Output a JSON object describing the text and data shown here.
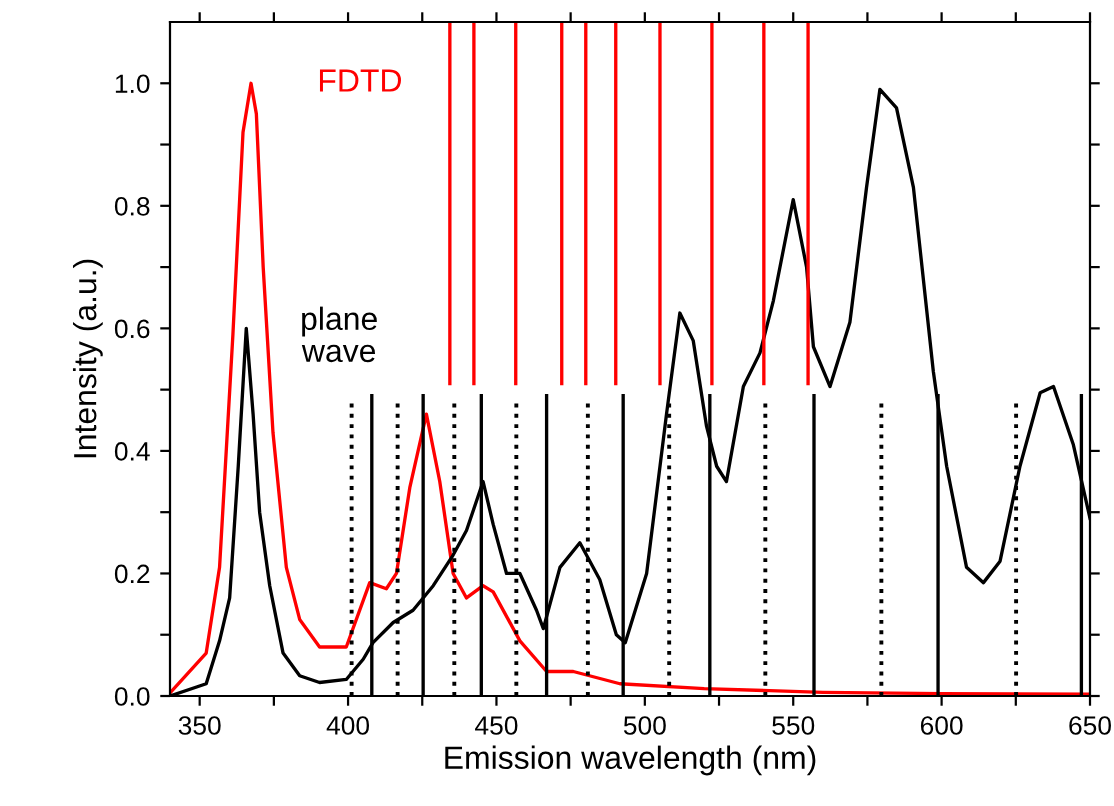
{
  "chart_data": {
    "type": "line",
    "xlabel": "Emission wavelength (nm)",
    "ylabel": "Intensity (a.u.)",
    "xlim": [
      340,
      650
    ],
    "ylim": [
      0,
      1.1
    ],
    "xticks": [
      350,
      {
        "value": 375,
        "label": null
      },
      400,
      {
        "value": 425,
        "label": null
      },
      450,
      {
        "value": 475,
        "label": null
      },
      500,
      {
        "value": 525,
        "label": null
      },
      550,
      {
        "value": 575,
        "label": null
      },
      600,
      {
        "value": 625,
        "label": null
      },
      650
    ],
    "yticks": [
      {
        "value": 0,
        "label": "0.0"
      },
      {
        "value": 0.1,
        "label": null
      },
      0.2,
      {
        "value": 0.3,
        "label": null
      },
      0.4,
      {
        "value": 0.5,
        "label": null
      },
      0.6,
      {
        "value": 0.7,
        "label": null
      },
      0.8,
      {
        "value": 0.9,
        "label": null
      },
      {
        "value": 1.0,
        "label": "1.0"
      }
    ],
    "grid": false,
    "legend": false,
    "annotations": [
      "FDTD",
      "plane\nwave"
    ],
    "series": [
      {
        "color": "#ff0000",
        "line_style": "solid",
        "x": [
          340,
          352.2,
          356.7,
          361.2,
          364.6,
          367.3,
          369.1,
          371.4,
          374.7,
          379.2,
          383.7,
          390.4,
          399.4,
          407.3,
          412.9,
          416.3,
          420.8,
          426.4,
          430.9,
          435.4,
          439.9,
          445.5,
          448.9,
          457.9,
          466.9,
          475.9,
          491.6,
          520,
          560,
          600,
          650
        ],
        "values": [
          0.005,
          0.07,
          0.21,
          0.59,
          0.92,
          1.0,
          0.95,
          0.7,
          0.43,
          0.21,
          0.125,
          0.08,
          0.08,
          0.185,
          0.175,
          0.2,
          0.34,
          0.46,
          0.35,
          0.2,
          0.16,
          0.18,
          0.17,
          0.09,
          0.04,
          0.04,
          0.02,
          0.012,
          0.006,
          0.004,
          0.003
        ]
      },
      {
        "color": "#000000",
        "line_style": "solid",
        "x": [
          340,
          352.2,
          356.7,
          360.1,
          363.0,
          365.7,
          368.0,
          370.2,
          373.6,
          378.1,
          383.7,
          390.4,
          399.4,
          405.1,
          408.4,
          415.2,
          421.9,
          428.7,
          435.4,
          439.9,
          445.5,
          448.9,
          453.4,
          457.9,
          463.5,
          465.8,
          471.4,
          478.1,
          484.8,
          490.4,
          493.4,
          500.6,
          507.3,
          511.8,
          516.3,
          520.8,
          524.2,
          527.5,
          533.2,
          538.8,
          543.3,
          550.0,
          554.5,
          556.8,
          562.4,
          569.1,
          574.7,
          579.2,
          584.8,
          590.5,
          597.2,
          601.7,
          608.4,
          614.1,
          619.7,
          626.4,
          633.2,
          637.7,
          644.4,
          650
        ],
        "values": [
          0,
          0.02,
          0.09,
          0.16,
          0.375,
          0.6,
          0.46,
          0.3,
          0.18,
          0.07,
          0.033,
          0.022,
          0.027,
          0.06,
          0.087,
          0.12,
          0.14,
          0.18,
          0.23,
          0.27,
          0.35,
          0.28,
          0.2,
          0.2,
          0.14,
          0.11,
          0.21,
          0.25,
          0.19,
          0.1,
          0.087,
          0.2,
          0.46,
          0.625,
          0.58,
          0.44,
          0.375,
          0.35,
          0.505,
          0.56,
          0.645,
          0.81,
          0.7,
          0.57,
          0.505,
          0.61,
          0.83,
          0.99,
          0.96,
          0.83,
          0.53,
          0.375,
          0.21,
          0.185,
          0.22,
          0.375,
          0.495,
          0.505,
          0.41,
          0.29
        ]
      },
      {
        "color": "#ff0000",
        "line_style": "solid",
        "x": [
          434.3,
          434.3
        ],
        "values": [
          0.51,
          1.1
        ]
      },
      {
        "color": "#ff0000",
        "line_style": "solid",
        "x": [
          442.4,
          442.4
        ],
        "values": [
          0.51,
          1.1
        ]
      },
      {
        "color": "#ff0000",
        "line_style": "solid",
        "x": [
          456.5,
          456.5
        ],
        "values": [
          0.51,
          1.1
        ]
      },
      {
        "color": "#ff0000",
        "line_style": "solid",
        "x": [
          472.0,
          472.0
        ],
        "values": [
          0.51,
          1.1
        ]
      },
      {
        "color": "#ff0000",
        "line_style": "solid",
        "x": [
          480.1,
          480.1
        ],
        "values": [
          0.51,
          1.1
        ]
      },
      {
        "color": "#ff0000",
        "line_style": "solid",
        "x": [
          490.2,
          490.2
        ],
        "values": [
          0.51,
          1.1
        ]
      },
      {
        "color": "#ff0000",
        "line_style": "solid",
        "x": [
          505.1,
          505.1
        ],
        "values": [
          0.51,
          1.1
        ]
      },
      {
        "color": "#ff0000",
        "line_style": "solid",
        "x": [
          522.6,
          522.6
        ],
        "values": [
          0.51,
          1.1
        ]
      },
      {
        "color": "#ff0000",
        "line_style": "solid",
        "x": [
          540.1,
          540.1
        ],
        "values": [
          0.51,
          1.1
        ]
      },
      {
        "color": "#ff0000",
        "line_style": "solid",
        "x": [
          555.0,
          555.0
        ],
        "values": [
          0.51,
          1.1
        ]
      },
      {
        "color": "#000000",
        "line_style": "solid",
        "x": [
          408.0,
          408.0
        ],
        "values": [
          0,
          0.49
        ]
      },
      {
        "color": "#000000",
        "line_style": "solid",
        "x": [
          425.3,
          425.3
        ],
        "values": [
          0,
          0.49
        ]
      },
      {
        "color": "#000000",
        "line_style": "solid",
        "x": [
          444.9,
          444.9
        ],
        "values": [
          0,
          0.49
        ]
      },
      {
        "color": "#000000",
        "line_style": "solid",
        "x": [
          466.9,
          466.9
        ],
        "values": [
          0,
          0.49
        ]
      },
      {
        "color": "#000000",
        "line_style": "solid",
        "x": [
          492.7,
          492.7
        ],
        "values": [
          0,
          0.49
        ]
      },
      {
        "color": "#000000",
        "line_style": "solid",
        "x": [
          521.9,
          521.9
        ],
        "values": [
          0,
          0.49
        ]
      },
      {
        "color": "#000000",
        "line_style": "solid",
        "x": [
          557.0,
          557.0
        ],
        "values": [
          0,
          0.49
        ]
      },
      {
        "color": "#000000",
        "line_style": "solid",
        "x": [
          598.8,
          598.8
        ],
        "values": [
          0,
          0.49
        ]
      },
      {
        "color": "#000000",
        "line_style": "solid",
        "x": [
          647.1,
          647.1
        ],
        "values": [
          0,
          0.49
        ]
      },
      {
        "color": "#000000",
        "line_style": "dotted",
        "x": [
          401.2,
          401.2
        ],
        "values": [
          0,
          0.48
        ]
      },
      {
        "color": "#000000",
        "line_style": "dotted",
        "x": [
          416.7,
          416.7
        ],
        "values": [
          0,
          0.48
        ]
      },
      {
        "color": "#000000",
        "line_style": "dotted",
        "x": [
          435.8,
          435.8
        ],
        "values": [
          0,
          0.48
        ]
      },
      {
        "color": "#000000",
        "line_style": "dotted",
        "x": [
          456.7,
          456.7
        ],
        "values": [
          0,
          0.48
        ]
      },
      {
        "color": "#000000",
        "line_style": "dotted",
        "x": [
          480.8,
          480.8
        ],
        "values": [
          0,
          0.48
        ]
      },
      {
        "color": "#000000",
        "line_style": "dotted",
        "x": [
          508.2,
          508.2
        ],
        "values": [
          0,
          0.48
        ]
      },
      {
        "color": "#000000",
        "line_style": "dotted",
        "x": [
          540.6,
          540.6
        ],
        "values": [
          0,
          0.48
        ]
      },
      {
        "color": "#000000",
        "line_style": "dotted",
        "x": [
          579.7,
          579.7
        ],
        "values": [
          0,
          0.48
        ]
      },
      {
        "color": "#000000",
        "line_style": "dotted",
        "x": [
          625.1,
          625.1
        ],
        "values": [
          0,
          0.48
        ]
      }
    ]
  }
}
